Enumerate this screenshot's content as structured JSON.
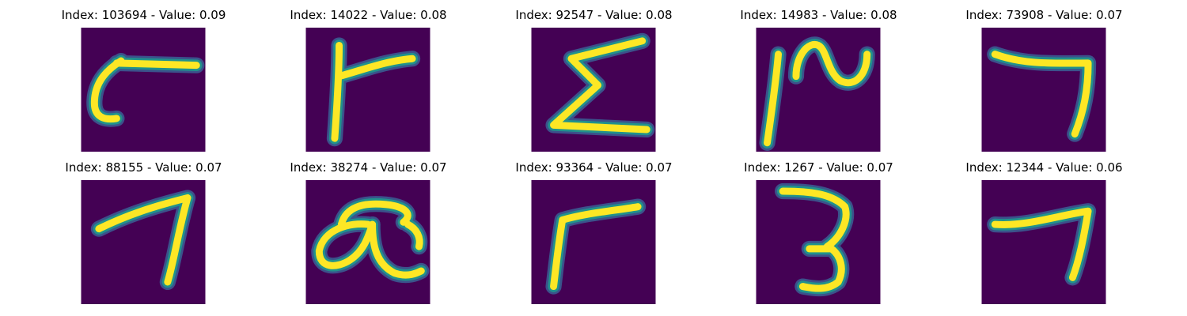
{
  "colors": {
    "background": "#440154",
    "stroke_core": "#fde725",
    "stroke_mid": "#21918c",
    "stroke_edge": "#3b528b"
  },
  "panels": [
    {
      "title": "Index: 103694 - Value: 0.09",
      "glyph": "hook-c-icon"
    },
    {
      "title": "Index: 14022 - Value: 0.08",
      "glyph": "f-shape-icon"
    },
    {
      "title": "Index: 92547 - Value: 0.08",
      "glyph": "sigma-shape-icon"
    },
    {
      "title": "Index: 14983 - Value: 0.08",
      "glyph": "squiggle-icon"
    },
    {
      "title": "Index: 73908 - Value: 0.07",
      "glyph": "seven-shape-icon"
    },
    {
      "title": "Index: 88155 - Value: 0.07",
      "glyph": "seven-shape-icon"
    },
    {
      "title": "Index: 38274 - Value: 0.07",
      "glyph": "loop-glyph-icon"
    },
    {
      "title": "Index: 93364 - Value: 0.07",
      "glyph": "r-shape-icon"
    },
    {
      "title": "Index: 1267 - Value: 0.07",
      "glyph": "three-shape-icon"
    },
    {
      "title": "Index: 12344 - Value: 0.06",
      "glyph": "seven-shape-icon"
    }
  ]
}
